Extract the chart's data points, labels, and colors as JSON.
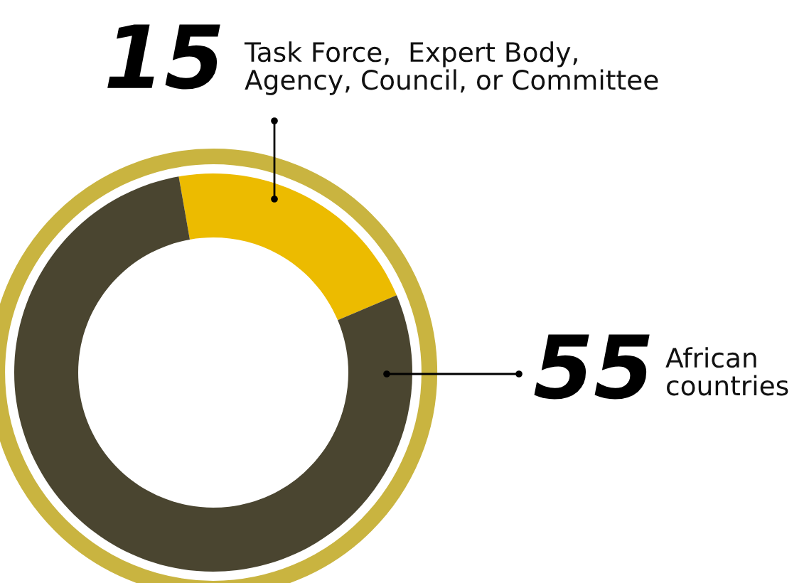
{
  "chart_data": {
    "type": "donut",
    "categories": [
      "Task Force,  Expert Body,\nAgency, Council, or Committee",
      "African\ncountries"
    ],
    "values": [
      15,
      55
    ],
    "colors": [
      "#ecbb00",
      "#4a4530"
    ],
    "data_labels": true
  }
}
